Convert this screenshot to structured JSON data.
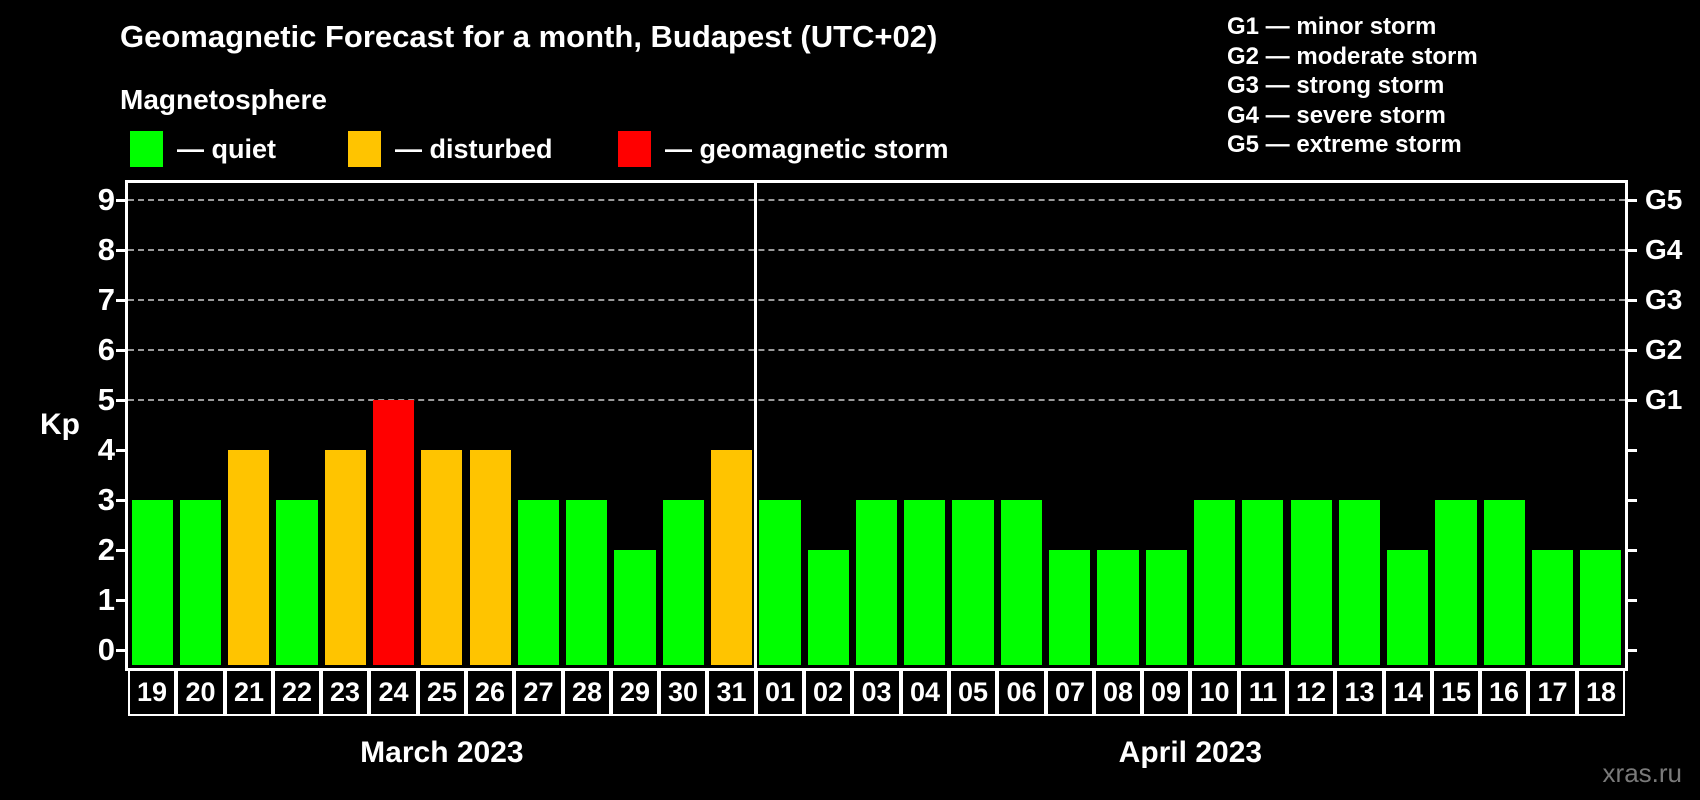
{
  "header": {
    "title": "Geomagnetic Forecast for a month, Budapest (UTC+02)",
    "subtitle": "Magnetosphere",
    "status_legend": [
      {
        "status": "quiet",
        "label": "— quiet"
      },
      {
        "status": "disturbed",
        "label": "— disturbed"
      },
      {
        "status": "storm",
        "label": "— geomagnetic storm"
      }
    ],
    "g_scale_legend": [
      "G1 — minor storm",
      "G2 — moderate storm",
      "G3 — strong storm",
      "G4 — severe storm",
      "G5 — extreme storm"
    ]
  },
  "colors": {
    "quiet": "#00ff00",
    "disturbed": "#ffc400",
    "storm": "#ff0000",
    "background": "#000000",
    "axis": "#ffffff",
    "gridline": "#9a9a9a",
    "watermark_text": "#7a7a7a"
  },
  "chart_data": {
    "type": "bar",
    "title": "Geomagnetic Forecast for a month, Budapest (UTC+02)",
    "ylabel": "Kp",
    "ylim": [
      0,
      9
    ],
    "y_ticks": [
      0,
      1,
      2,
      3,
      4,
      5,
      6,
      7,
      8,
      9
    ],
    "right_axis": [
      {
        "kp": 5,
        "label": "G1"
      },
      {
        "kp": 6,
        "label": "G2"
      },
      {
        "kp": 7,
        "label": "G3"
      },
      {
        "kp": 8,
        "label": "G4"
      },
      {
        "kp": 9,
        "label": "G5"
      }
    ],
    "grid": "dashed horizontal lines at G-storm levels (Kp 5-9)",
    "legend_position": "top",
    "months": [
      {
        "label": "March 2023",
        "days": [
          {
            "day": "19",
            "kp": 3,
            "status": "quiet"
          },
          {
            "day": "20",
            "kp": 3,
            "status": "quiet"
          },
          {
            "day": "21",
            "kp": 4,
            "status": "disturbed"
          },
          {
            "day": "22",
            "kp": 3,
            "status": "quiet"
          },
          {
            "day": "23",
            "kp": 4,
            "status": "disturbed"
          },
          {
            "day": "24",
            "kp": 5,
            "status": "storm"
          },
          {
            "day": "25",
            "kp": 4,
            "status": "disturbed"
          },
          {
            "day": "26",
            "kp": 4,
            "status": "disturbed"
          },
          {
            "day": "27",
            "kp": 3,
            "status": "quiet"
          },
          {
            "day": "28",
            "kp": 3,
            "status": "quiet"
          },
          {
            "day": "29",
            "kp": 2,
            "status": "quiet"
          },
          {
            "day": "30",
            "kp": 3,
            "status": "quiet"
          },
          {
            "day": "31",
            "kp": 4,
            "status": "disturbed"
          }
        ]
      },
      {
        "label": "April 2023",
        "days": [
          {
            "day": "01",
            "kp": 3,
            "status": "quiet"
          },
          {
            "day": "02",
            "kp": 2,
            "status": "quiet"
          },
          {
            "day": "03",
            "kp": 3,
            "status": "quiet"
          },
          {
            "day": "04",
            "kp": 3,
            "status": "quiet"
          },
          {
            "day": "05",
            "kp": 3,
            "status": "quiet"
          },
          {
            "day": "06",
            "kp": 3,
            "status": "quiet"
          },
          {
            "day": "07",
            "kp": 2,
            "status": "quiet"
          },
          {
            "day": "08",
            "kp": 2,
            "status": "quiet"
          },
          {
            "day": "09",
            "kp": 2,
            "status": "quiet"
          },
          {
            "day": "10",
            "kp": 3,
            "status": "quiet"
          },
          {
            "day": "11",
            "kp": 3,
            "status": "quiet"
          },
          {
            "day": "12",
            "kp": 3,
            "status": "quiet"
          },
          {
            "day": "13",
            "kp": 3,
            "status": "quiet"
          },
          {
            "day": "14",
            "kp": 2,
            "status": "quiet"
          },
          {
            "day": "15",
            "kp": 3,
            "status": "quiet"
          },
          {
            "day": "16",
            "kp": 3,
            "status": "quiet"
          },
          {
            "day": "17",
            "kp": 2,
            "status": "quiet"
          },
          {
            "day": "18",
            "kp": 2,
            "status": "quiet"
          }
        ]
      }
    ]
  },
  "watermark": "xras.ru"
}
